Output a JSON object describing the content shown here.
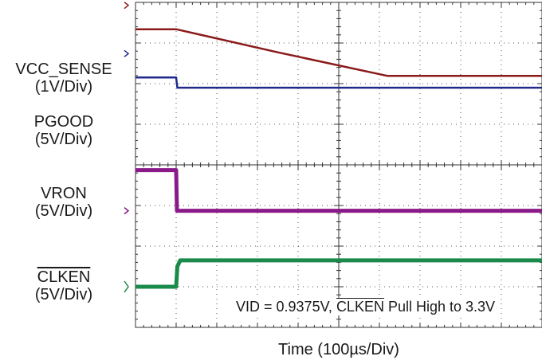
{
  "chart_data": {
    "type": "line",
    "title": "",
    "xlabel": "Time  (100µs/Div)",
    "annotation": {
      "prefix": "VID = 0.9375V, ",
      "overlined": "CLKEN",
      "suffix": " Pull High to 3.3V"
    },
    "grid": true,
    "divisions": {
      "x": 10,
      "y": 8
    },
    "series": [
      {
        "name": "VCC_SENSE",
        "scale": "(1V/Div)",
        "color": "#8b1a1a",
        "x_div": [
          0,
          1.0,
          3.5,
          6.2,
          10
        ],
        "y_div": [
          7.34,
          7.34,
          6.77,
          6.19,
          6.19
        ]
      },
      {
        "name": "PGOOD",
        "scale": "(5V/Div)",
        "color": "#1f2a8a",
        "x_div": [
          0,
          1.0,
          1.03,
          10
        ],
        "y_div": [
          6.15,
          6.15,
          5.9,
          5.9
        ]
      },
      {
        "name": "VRON",
        "scale": "(5V/Div)",
        "color": "#8a1a8a",
        "x_div": [
          0,
          1.0,
          1.02,
          10
        ],
        "y_div": [
          3.87,
          3.87,
          2.87,
          2.87
        ]
      },
      {
        "name": "CLKEN",
        "name_overlined": true,
        "scale": "(5V/Div)",
        "color": "#1a8a4a",
        "x_div": [
          0,
          1.0,
          1.03,
          1.1,
          10
        ],
        "y_div": [
          1.0,
          1.0,
          1.5,
          1.65,
          1.65
        ]
      }
    ]
  }
}
